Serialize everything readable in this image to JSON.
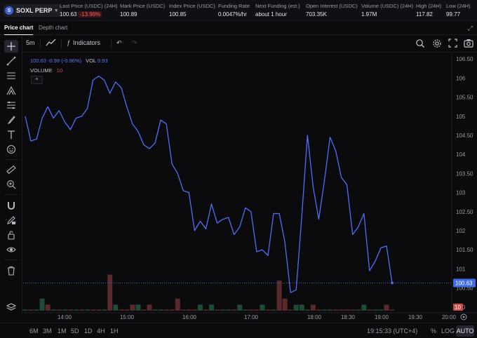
{
  "header": {
    "symbol": "SOXL PERP",
    "symbol_icon_letter": "S",
    "stats": [
      {
        "label": "Last Price (USDC) (24H)",
        "value": "100.63",
        "change": "-13.96%"
      },
      {
        "label": "Mark Price (USDC)",
        "value": "100.89"
      },
      {
        "label": "Index Price (USDC)",
        "value": "100.85"
      },
      {
        "label": "Funding Rate",
        "value": "0.0047%/hr"
      },
      {
        "label": "Next Funding (est.)",
        "value": "about 1 hour"
      },
      {
        "label": "Open Interest (USDC)",
        "value": "703.35K"
      },
      {
        "label": "Volume (USDC) (24H)",
        "value": "1.97M"
      },
      {
        "label": "High (24H)",
        "value": "117.82"
      },
      {
        "label": "Low (24H)",
        "value": "99.77"
      }
    ]
  },
  "tabs": {
    "price": "Price chart",
    "depth": "Depth chart"
  },
  "toolbar": {
    "interval": "5m",
    "indicators": "Indicators"
  },
  "legend": {
    "price_line": "100.63  -0.98  (-0.96%)",
    "vol_label": "VOL",
    "vol_value": "9.93",
    "volume_label": "VOLUME",
    "volume_value": "10",
    "collapse": "^"
  },
  "colors": {
    "line": "#4f6ef7",
    "up_bar": "#1f4a38",
    "down_bar": "#5a2a2a",
    "price_tag": "#3d6de6",
    "vol_tag": "#d44a45"
  },
  "chart_data": {
    "type": "line",
    "title": "",
    "x_ticks": [
      "14:00",
      "15:00",
      "16:00",
      "17:00",
      "18:00",
      "18:30",
      "19:00",
      "19:30",
      "20:00"
    ],
    "y_ticks": [
      "106.50",
      "106",
      "105.50",
      "105",
      "104.50",
      "104",
      "103.50",
      "103",
      "102.50",
      "102",
      "101.50",
      "101",
      "100.50",
      "100"
    ],
    "ylim": [
      99.85,
      106.65
    ],
    "last_price": 100.63,
    "last_price_label": "100.63",
    "last_volume_label": "10",
    "grid": false,
    "series": [
      {
        "values": [
          105.0,
          104.35,
          104.4,
          104.95,
          105.25,
          104.95,
          105.15,
          104.85,
          104.65,
          104.95,
          105.0,
          105.2,
          105.95,
          106.05,
          105.95,
          105.6,
          105.9,
          105.75,
          105.25,
          104.8,
          104.6,
          104.25,
          104.15,
          104.3,
          104.9,
          104.8,
          103.75,
          103.5,
          103.05,
          103.0,
          102.0,
          102.25,
          102.05,
          102.7,
          102.2,
          102.3,
          102.35,
          101.9,
          102.1,
          102.6,
          102.5,
          101.45,
          101.5,
          101.35,
          102.45,
          102.45,
          101.7,
          100.38,
          100.45,
          102.4,
          104.5,
          103.15,
          102.3,
          103.3,
          104.45,
          104.1,
          103.4,
          103.2,
          101.9,
          102.1,
          102.45,
          100.95,
          101.2,
          101.55,
          101.6,
          100.63
        ],
        "volumes": [
          0,
          0,
          0,
          2,
          1,
          0,
          0,
          0,
          0,
          0,
          0,
          0,
          0,
          0,
          0,
          6,
          1,
          0,
          0,
          1,
          1,
          0,
          1,
          0,
          0,
          0,
          0,
          2,
          0,
          0,
          0,
          1,
          0,
          1,
          0,
          0,
          0,
          0,
          1,
          0,
          0,
          0,
          1,
          0,
          0,
          5,
          2,
          0,
          1,
          1,
          0,
          1,
          0,
          0,
          0,
          0,
          0,
          0,
          0,
          0,
          1,
          0,
          0,
          0,
          1,
          0
        ],
        "volume_direction": [
          "u",
          "d",
          "u",
          "u",
          "d",
          "u",
          "d",
          "u",
          "d",
          "u",
          "d",
          "u",
          "d",
          "d",
          "u",
          "d",
          "u",
          "d",
          "d",
          "d",
          "u",
          "d",
          "d",
          "u",
          "u",
          "d",
          "d",
          "d",
          "d",
          "d",
          "d",
          "u",
          "d",
          "u",
          "d",
          "u",
          "u",
          "d",
          "u",
          "u",
          "d",
          "d",
          "u",
          "d",
          "u",
          "d",
          "d",
          "d",
          "u",
          "u",
          "u",
          "d",
          "d",
          "u",
          "u",
          "d",
          "d",
          "d",
          "d",
          "u",
          "u",
          "d",
          "u",
          "u",
          "d",
          "d"
        ]
      }
    ]
  },
  "bottom": {
    "ranges": [
      "6M",
      "3M",
      "1M",
      "5D",
      "1D",
      "4H",
      "1H"
    ],
    "clock": "19:15:33 (UTC+4)",
    "percent": "%",
    "log": "LOG",
    "auto": "AUTO"
  }
}
